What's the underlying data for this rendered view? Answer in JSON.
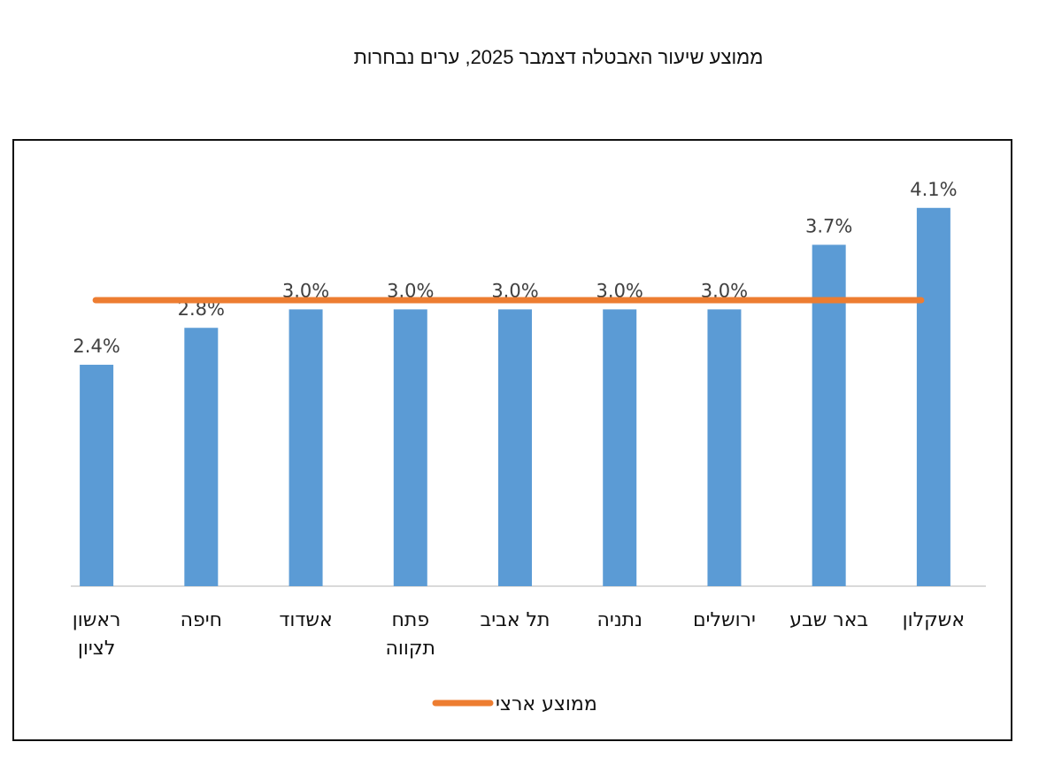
{
  "title": "ממוצע שיעור האבטלה דצמבר 2025, ערים נבחרות",
  "chart_data": {
    "type": "bar",
    "categories": [
      [
        "ראשון",
        "לציון"
      ],
      [
        "חיפה"
      ],
      [
        "אשדוד"
      ],
      [
        "פתח",
        "תקווה"
      ],
      [
        "תל אביב"
      ],
      [
        "נתניה"
      ],
      [
        "ירושלים"
      ],
      [
        "באר שבע"
      ],
      [
        "אשקלון"
      ]
    ],
    "series": [
      {
        "values": [
          2.4,
          2.8,
          3.0,
          3.0,
          3.0,
          3.0,
          3.0,
          3.7,
          4.1
        ],
        "data_labels": [
          "2.4%",
          "2.8%",
          "3.0%",
          "3.0%",
          "3.0%",
          "3.0%",
          "3.0%",
          "3.7%",
          "4.1%"
        ],
        "color": "#5b9bd5"
      }
    ],
    "reference_line": {
      "name": "ממוצע ארצי",
      "value": 3.1,
      "color": "#ed7d31"
    },
    "ylim": [
      0,
      4.5
    ],
    "grid": false,
    "legend": "bottom-center"
  }
}
